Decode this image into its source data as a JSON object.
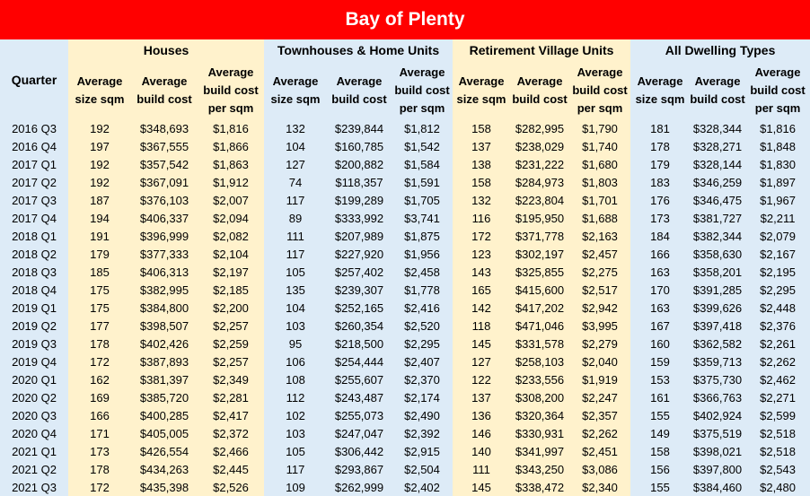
{
  "title": "Bay of Plenty",
  "quarter_label": "Quarter",
  "groups": [
    "Houses",
    "Townhouses & Home Units",
    "Retirement Village Units",
    "All Dwelling Types"
  ],
  "sub_labels": {
    "size": "Average size sqm",
    "cost": "Average build cost",
    "per": "Average build cost per sqm"
  },
  "rows": [
    {
      "q": "2016 Q3",
      "v": [
        "192",
        "$348,693",
        "$1,816",
        "132",
        "$239,844",
        "$1,812",
        "158",
        "$282,995",
        "$1,790",
        "181",
        "$328,344",
        "$1,816"
      ]
    },
    {
      "q": "2016 Q4",
      "v": [
        "197",
        "$367,555",
        "$1,866",
        "104",
        "$160,785",
        "$1,542",
        "137",
        "$238,029",
        "$1,740",
        "178",
        "$328,271",
        "$1,848"
      ]
    },
    {
      "q": "2017 Q1",
      "v": [
        "192",
        "$357,542",
        "$1,863",
        "127",
        "$200,882",
        "$1,584",
        "138",
        "$231,222",
        "$1,680",
        "179",
        "$328,144",
        "$1,830"
      ]
    },
    {
      "q": "2017 Q2",
      "v": [
        "192",
        "$367,091",
        "$1,912",
        "74",
        "$118,357",
        "$1,591",
        "158",
        "$284,973",
        "$1,803",
        "183",
        "$346,259",
        "$1,897"
      ]
    },
    {
      "q": "2017 Q3",
      "v": [
        "187",
        "$376,103",
        "$2,007",
        "117",
        "$199,289",
        "$1,705",
        "132",
        "$223,804",
        "$1,701",
        "176",
        "$346,475",
        "$1,967"
      ]
    },
    {
      "q": "2017 Q4",
      "v": [
        "194",
        "$406,337",
        "$2,094",
        "89",
        "$333,992",
        "$3,741",
        "116",
        "$195,950",
        "$1,688",
        "173",
        "$381,727",
        "$2,211"
      ]
    },
    {
      "q": "2018 Q1",
      "v": [
        "191",
        "$396,999",
        "$2,082",
        "111",
        "$207,989",
        "$1,875",
        "172",
        "$371,778",
        "$2,163",
        "184",
        "$382,344",
        "$2,079"
      ]
    },
    {
      "q": "2018 Q2",
      "v": [
        "179",
        "$377,333",
        "$2,104",
        "117",
        "$227,920",
        "$1,956",
        "123",
        "$302,197",
        "$2,457",
        "166",
        "$358,630",
        "$2,167"
      ]
    },
    {
      "q": "2018 Q3",
      "v": [
        "185",
        "$406,313",
        "$2,197",
        "105",
        "$257,402",
        "$2,458",
        "143",
        "$325,855",
        "$2,275",
        "163",
        "$358,201",
        "$2,195"
      ]
    },
    {
      "q": "2018 Q4",
      "v": [
        "175",
        "$382,995",
        "$2,185",
        "135",
        "$239,307",
        "$1,778",
        "165",
        "$415,600",
        "$2,517",
        "170",
        "$391,285",
        "$2,295"
      ]
    },
    {
      "q": "2019 Q1",
      "v": [
        "175",
        "$384,800",
        "$2,200",
        "104",
        "$252,165",
        "$2,416",
        "142",
        "$417,202",
        "$2,942",
        "163",
        "$399,626",
        "$2,448"
      ]
    },
    {
      "q": "2019 Q2",
      "v": [
        "177",
        "$398,507",
        "$2,257",
        "103",
        "$260,354",
        "$2,520",
        "118",
        "$471,046",
        "$3,995",
        "167",
        "$397,418",
        "$2,376"
      ]
    },
    {
      "q": "2019 Q3",
      "v": [
        "178",
        "$402,426",
        "$2,259",
        "95",
        "$218,500",
        "$2,295",
        "145",
        "$331,578",
        "$2,279",
        "160",
        "$362,582",
        "$2,261"
      ]
    },
    {
      "q": "2019 Q4",
      "v": [
        "172",
        "$387,893",
        "$2,257",
        "106",
        "$254,444",
        "$2,407",
        "127",
        "$258,103",
        "$2,040",
        "159",
        "$359,713",
        "$2,262"
      ]
    },
    {
      "q": "2020 Q1",
      "v": [
        "162",
        "$381,397",
        "$2,349",
        "108",
        "$255,607",
        "$2,370",
        "122",
        "$233,556",
        "$1,919",
        "153",
        "$375,730",
        "$2,462"
      ]
    },
    {
      "q": "2020 Q2",
      "v": [
        "169",
        "$385,720",
        "$2,281",
        "112",
        "$243,487",
        "$2,174",
        "137",
        "$308,200",
        "$2,247",
        "161",
        "$366,763",
        "$2,271"
      ]
    },
    {
      "q": "2020 Q3",
      "v": [
        "166",
        "$400,285",
        "$2,417",
        "102",
        "$255,073",
        "$2,490",
        "136",
        "$320,364",
        "$2,357",
        "155",
        "$402,924",
        "$2,599"
      ]
    },
    {
      "q": "2020 Q4",
      "v": [
        "171",
        "$405,005",
        "$2,372",
        "103",
        "$247,047",
        "$2,392",
        "146",
        "$330,931",
        "$2,262",
        "149",
        "$375,519",
        "$2,518"
      ]
    },
    {
      "q": "2021 Q1",
      "v": [
        "173",
        "$426,554",
        "$2,466",
        "105",
        "$306,442",
        "$2,915",
        "140",
        "$341,997",
        "$2,451",
        "158",
        "$398,021",
        "$2,518"
      ]
    },
    {
      "q": "2021 Q2",
      "v": [
        "178",
        "$434,263",
        "$2,445",
        "117",
        "$293,867",
        "$2,504",
        "111",
        "$343,250",
        "$3,086",
        "156",
        "$397,800",
        "$2,543"
      ]
    },
    {
      "q": "2021 Q3",
      "v": [
        "172",
        "$435,398",
        "$2,526",
        "109",
        "$262,999",
        "$2,402",
        "145",
        "$338,472",
        "$2,340",
        "155",
        "$384,460",
        "$2,480"
      ]
    }
  ]
}
